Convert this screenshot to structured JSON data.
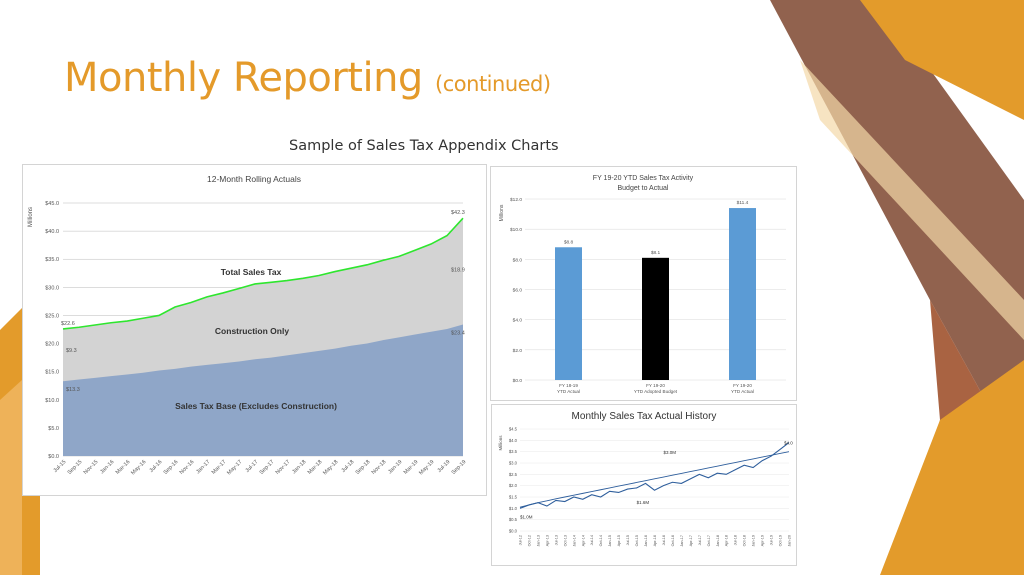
{
  "slide": {
    "title": "Monthly Reporting",
    "title_sub": "(continued)",
    "caption": "Sample of Sales Tax Appendix Charts",
    "colors": {
      "title": "#e49a2a",
      "accent_orange": "#e39b2b",
      "accent_brown": "#8b5a45"
    }
  },
  "chart_data": [
    {
      "type": "area",
      "title": "12-Month Rolling Actuals",
      "ylabel": "Millions",
      "ylim": [
        0,
        45
      ],
      "yticks": [
        "$0.0",
        "$5.0",
        "$10.0",
        "$15.0",
        "$20.0",
        "$25.0",
        "$30.0",
        "$35.0",
        "$40.0",
        "$45.0"
      ],
      "categories": [
        "Jul-15",
        "Sep-15",
        "Nov-15",
        "Jan-16",
        "Mar-16",
        "May-16",
        "Jul-16",
        "Sep-16",
        "Nov-16",
        "Jan-17",
        "Mar-17",
        "May-17",
        "Jul-17",
        "Sep-17",
        "Nov-17",
        "Jan-18",
        "Mar-18",
        "May-18",
        "Jul-18",
        "Sep-18",
        "Nov-18",
        "Jan-19",
        "Mar-19",
        "May-19",
        "Jul-19",
        "Sep-19"
      ],
      "series": [
        {
          "name": "Total Sales Tax",
          "color": "#2ee62e",
          "fill": "#d3d3d3",
          "values": [
            22.6,
            22.9,
            23.3,
            23.7,
            24.0,
            24.5,
            25.0,
            26.5,
            27.3,
            28.3,
            29.0,
            29.8,
            30.6,
            30.9,
            31.2,
            31.6,
            32.1,
            32.8,
            33.4,
            34.0,
            34.8,
            35.5,
            36.6,
            37.7,
            39.2,
            42.3
          ]
        },
        {
          "name": "Sales Tax Base (Excludes Construction)",
          "color": "#8aa3c7",
          "fill": "#8fa6c8",
          "values": [
            13.3,
            13.6,
            13.9,
            14.2,
            14.5,
            14.8,
            15.2,
            15.5,
            15.9,
            16.2,
            16.5,
            16.8,
            17.2,
            17.5,
            17.9,
            18.3,
            18.7,
            19.1,
            19.6,
            20.0,
            20.6,
            21.1,
            21.6,
            22.1,
            22.6,
            23.4
          ]
        }
      ],
      "region_labels": [
        "Total Sales Tax",
        "Construction Only",
        "Sales Tax Base (Excludes Construction)"
      ],
      "data_labels": {
        "total_start": "$22.6",
        "total_end": "$42.3",
        "construction_start": "$9.3",
        "construction_end": "$18.9",
        "base_start": "$13.3",
        "base_end": "$23.4"
      }
    },
    {
      "type": "bar",
      "title": "FY 19-20 YTD Sales Tax Activity",
      "subtitle": "Budget to Actual",
      "ylabel": "Millions",
      "ylim": [
        0,
        12
      ],
      "yticks": [
        "$0.0",
        "$2.0",
        "$4.0",
        "$6.0",
        "$8.0",
        "$10.0",
        "$12.0"
      ],
      "categories": [
        "FY 18-19|YTD Actual",
        "FY 19-20|YTD Adopted Budget",
        "FY 19-20|YTD Actual"
      ],
      "values": [
        8.8,
        8.1,
        11.4
      ],
      "value_labels": [
        "$8.8",
        "$8.1",
        "$11.4"
      ],
      "colors": [
        "#5b9bd5",
        "#000000",
        "#5b9bd5"
      ]
    },
    {
      "type": "line",
      "title": "Monthly Sales Tax Actual History",
      "ylabel": "Millions",
      "ylim": [
        0,
        4.5
      ],
      "yticks": [
        "$0.0",
        "$0.5",
        "$1.0",
        "$1.5",
        "$2.0",
        "$2.5",
        "$3.0",
        "$3.5",
        "$4.0",
        "$4.5"
      ],
      "categories": [
        "Jul-12",
        "Oct-12",
        "Jan-13",
        "Apr-13",
        "Jul-13",
        "Oct-13",
        "Jan-14",
        "Apr-14",
        "Jul-14",
        "Oct-14",
        "Jan-15",
        "Apr-15",
        "Jul-15",
        "Oct-15",
        "Jan-16",
        "Apr-16",
        "Jul-16",
        "Oct-16",
        "Jan-17",
        "Apr-17",
        "Jul-17",
        "Oct-17",
        "Jan-18",
        "Apr-18",
        "Jul-18",
        "Oct-18",
        "Jan-19",
        "Apr-19",
        "Jul-19",
        "Oct-19",
        "Jan-20"
      ],
      "series": [
        {
          "name": "Monthly Sales Tax",
          "color": "#2e5e9c",
          "values": [
            1.0,
            1.15,
            1.25,
            1.1,
            1.35,
            1.3,
            1.5,
            1.4,
            1.6,
            1.5,
            1.75,
            1.7,
            1.85,
            1.9,
            2.1,
            1.8,
            2.0,
            2.15,
            2.1,
            2.3,
            2.5,
            2.35,
            2.55,
            2.5,
            2.7,
            2.9,
            2.8,
            3.1,
            3.3,
            3.6,
            3.9
          ]
        },
        {
          "name": "Trend",
          "color": "#2e5e9c",
          "values": [
            1.05,
            1.15,
            1.25,
            1.33,
            1.42,
            1.5,
            1.58,
            1.66,
            1.74,
            1.82,
            1.9,
            1.98,
            2.06,
            2.14,
            2.22,
            2.3,
            2.38,
            2.46,
            2.54,
            2.62,
            2.7,
            2.78,
            2.86,
            2.94,
            3.02,
            3.1,
            3.18,
            3.26,
            3.34,
            3.42,
            3.5
          ]
        }
      ],
      "data_labels": [
        "$1.0M",
        "$1.6M",
        "$3.0M",
        "$4.0"
      ]
    }
  ]
}
